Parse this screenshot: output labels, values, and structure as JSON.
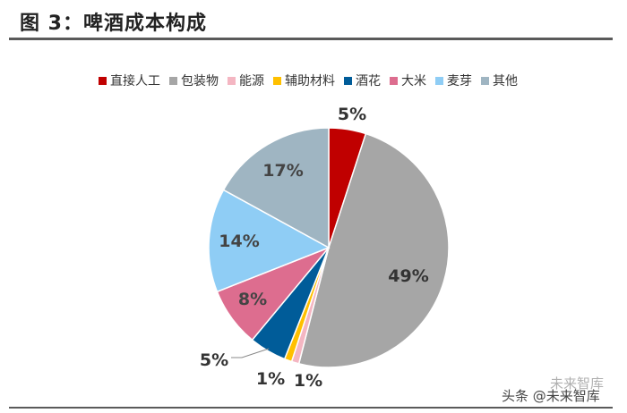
{
  "figure": {
    "title": "图 3：啤酒成本构成"
  },
  "chart_data": {
    "type": "pie",
    "title": "",
    "legend_position": "top",
    "slices": [
      {
        "label": "直接人工",
        "value": 5,
        "display": "5%",
        "color": "#c00000"
      },
      {
        "label": "包装物",
        "value": 49,
        "display": "49%",
        "color": "#a6a6a6"
      },
      {
        "label": "能源",
        "value": 1,
        "display": "1%",
        "color": "#f4b6c2"
      },
      {
        "label": "辅助材料",
        "value": 1,
        "display": "1%",
        "color": "#ffc000"
      },
      {
        "label": "酒花",
        "value": 5,
        "display": "5%",
        "color": "#005c99"
      },
      {
        "label": "大米",
        "value": 8,
        "display": "8%",
        "color": "#dd6d8f"
      },
      {
        "label": "麦芽",
        "value": 14,
        "display": "14%",
        "color": "#8fcdf5"
      },
      {
        "label": "其他",
        "value": 17,
        "display": "17%",
        "color": "#9fb5c2"
      }
    ]
  },
  "watermark": {
    "line1": "未来智库",
    "line2": "头条 @未来智库"
  }
}
